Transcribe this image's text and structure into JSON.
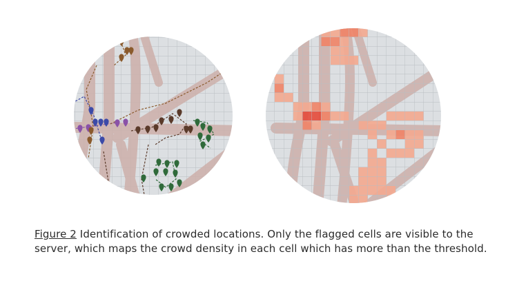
{
  "figure": {
    "left_panel": {
      "name": "user-trajectory-map"
    },
    "right_panel": {
      "name": "crowd-density-heatmap"
    }
  },
  "caption": {
    "label": "Figure 2",
    "text": " Identification of crowded locations. Only the flagged cells are visible to the server, which maps the crowd density in each cell which has more than the threshold."
  },
  "colors": {
    "grid_bg": "#dcdfe2",
    "grid_line": "#b9bdc1",
    "road": "#cdb0aa",
    "heat_light": "#f3a88f",
    "heat_mid": "#ef8366",
    "heat_dark": "#e44a3a",
    "trajectory_blue": "#3c4aa8",
    "trajectory_brown": "#8a5a2c",
    "trajectory_purple": "#8a52a8",
    "trajectory_dark": "#5a3a2a",
    "trajectory_green": "#2f6a3a"
  }
}
